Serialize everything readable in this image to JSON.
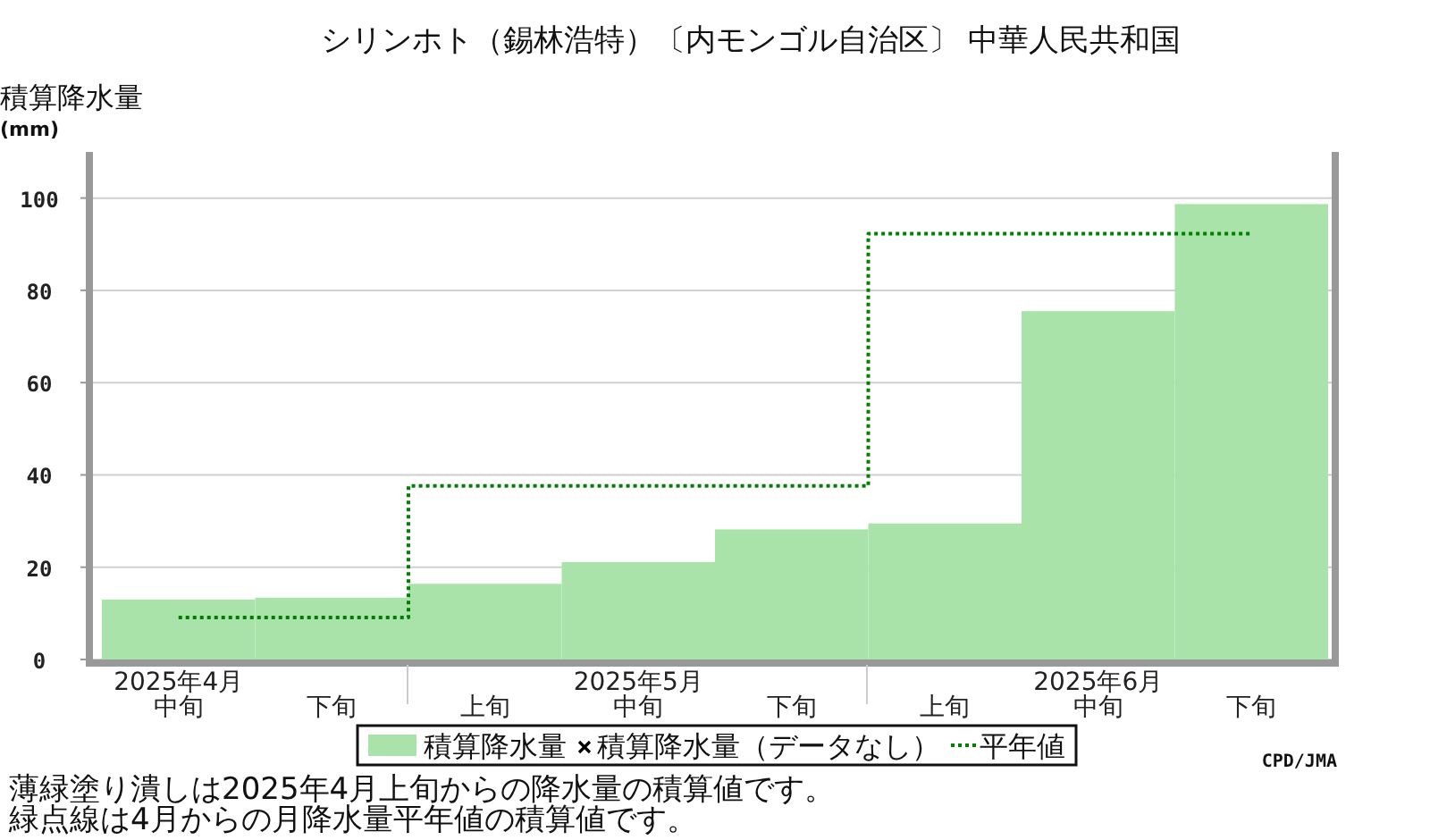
{
  "chart_data": {
    "type": "bar",
    "title": "シリンホト（錫林浩特）〔内モンゴル自治区〕 中華人民共和国",
    "ylabel": "積算降水量(mm)",
    "categories": [
      "2025年4月中旬",
      "下旬",
      "上旬",
      "2025年5月中旬",
      "下旬",
      "上旬",
      "2025年6月中旬",
      "下旬"
    ],
    "series": [
      {
        "name": "積算降水量",
        "color": "#aae3aa",
        "values": [
          13.0,
          13.4,
          16.4,
          21.1,
          28.2,
          29.5,
          75.5,
          98.7
        ]
      },
      {
        "name": "積算降水量（データなし）",
        "type": "scatter",
        "marker": "cross",
        "color": "#000000",
        "values": [
          null,
          null,
          null,
          null,
          null,
          null,
          null,
          null
        ]
      },
      {
        "name": "平年値",
        "type": "step",
        "color": "#008000",
        "line_style": "dotted",
        "values": [
          9.1,
          9.1,
          37.6,
          37.6,
          37.6,
          92.3,
          92.3,
          92.3
        ]
      }
    ],
    "ylim": [
      0,
      110
    ],
    "yticks": [
      0,
      20,
      40,
      60,
      80,
      100
    ],
    "grid": "y",
    "legend": "bottom",
    "annotations": [
      "CPD/JMA",
      "薄緑塗り潰しは2025年4月上旬からの降水量の積算値です。",
      "緑点線は4月からの月降水量平年値の積算値です。"
    ]
  }
}
